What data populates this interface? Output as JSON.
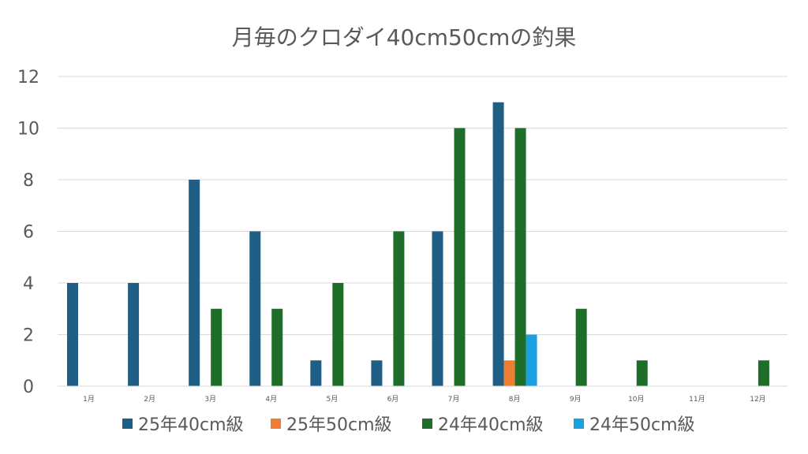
{
  "chart_data": {
    "type": "bar",
    "title": "月毎のクロダイ40cm50cmの釣果",
    "xlabel": "",
    "ylabel": "",
    "categories": [
      "1月",
      "2月",
      "3月",
      "4月",
      "5月",
      "6月",
      "7月",
      "8月",
      "9月",
      "10月",
      "11月",
      "12月"
    ],
    "ylim": [
      0,
      12
    ],
    "yticks": [
      0,
      2,
      4,
      6,
      8,
      10,
      12
    ],
    "grid": true,
    "legend_position": "bottom",
    "series": [
      {
        "name": "25年40cm級",
        "color": "#1f5f85",
        "values": [
          4,
          4,
          8,
          6,
          1,
          1,
          6,
          11,
          0,
          0,
          0,
          0
        ]
      },
      {
        "name": "25年50cm級",
        "color": "#ed7d31",
        "values": [
          0,
          0,
          0,
          0,
          0,
          0,
          0,
          1,
          0,
          0,
          0,
          0
        ]
      },
      {
        "name": "24年40cm級",
        "color": "#1e6e2a",
        "values": [
          0,
          0,
          3,
          3,
          4,
          6,
          10,
          10,
          3,
          1,
          0,
          1
        ]
      },
      {
        "name": "24年50cm級",
        "color": "#1ba1e2",
        "values": [
          0,
          0,
          0,
          0,
          0,
          0,
          0,
          2,
          0,
          0,
          0,
          0
        ]
      }
    ]
  }
}
